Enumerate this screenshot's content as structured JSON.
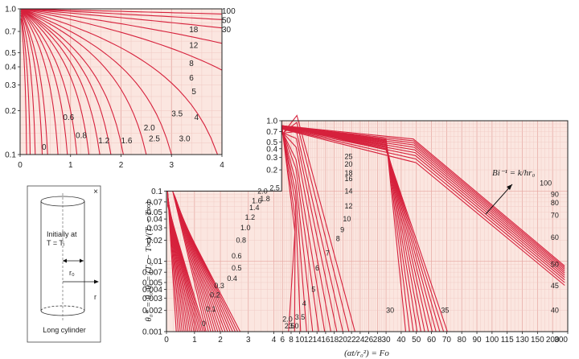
{
  "chart_data": [
    {
      "type": "line",
      "ylog": true,
      "xlim": [
        0,
        4
      ],
      "ylim": [
        0.1,
        1.0
      ],
      "x_ticks": [
        "0",
        "1",
        "2",
        "3",
        "4"
      ],
      "y_ticks": [
        {
          "v": 1.0,
          "t": "1.0"
        },
        {
          "v": 0.7,
          "t": "0.7"
        },
        {
          "v": 0.5,
          "t": "0.5"
        },
        {
          "v": 0.4,
          "t": "0.4"
        },
        {
          "v": 0.3,
          "t": "0.3"
        },
        {
          "v": 0.2,
          "t": "0.2"
        },
        {
          "v": 0.1,
          "t": "0.1"
        }
      ],
      "series": [
        {
          "name": "100",
          "slope": 0.0195
        },
        {
          "name": "50",
          "slope": 0.039
        },
        {
          "name": "30",
          "slope": 0.065
        },
        {
          "name": "18",
          "slope": 0.105
        },
        {
          "name": "12",
          "slope": 0.155
        },
        {
          "name": "8",
          "slope": 0.23
        },
        {
          "name": "6",
          "slope": 0.3
        },
        {
          "name": "5",
          "slope": 0.36
        },
        {
          "name": "4",
          "slope": 0.44
        },
        {
          "name": "3.5",
          "slope": 0.5
        },
        {
          "name": "3.0",
          "slope": 0.57
        },
        {
          "name": "2.5",
          "slope": 0.66
        },
        {
          "name": "2.0",
          "slope": 0.8
        },
        {
          "name": "1.6",
          "slope": 0.96
        },
        {
          "name": "1.2",
          "slope": 1.2
        },
        {
          "name": "0.8",
          "slope": 1.65
        },
        {
          "name": "0.6",
          "slope": 2.05
        },
        {
          "name": "0",
          "slope": 3.0
        },
        {
          "name": "",
          "slope": 4.5
        },
        {
          "name": "",
          "slope": 7.0
        }
      ],
      "labels": [
        {
          "t": "100",
          "x": 4.0,
          "y": 0.96
        },
        {
          "t": "50",
          "x": 4.0,
          "y": 0.83
        },
        {
          "t": "30",
          "x": 4.0,
          "y": 0.72
        },
        {
          "t": "18",
          "x": 3.35,
          "y": 0.72
        },
        {
          "t": "12",
          "x": 3.35,
          "y": 0.56
        },
        {
          "t": "8",
          "x": 3.35,
          "y": 0.42
        },
        {
          "t": "6",
          "x": 3.35,
          "y": 0.335
        },
        {
          "t": "5",
          "x": 3.4,
          "y": 0.27
        },
        {
          "t": "4",
          "x": 3.45,
          "y": 0.18
        },
        {
          "t": "3.5",
          "x": 3.0,
          "y": 0.19
        },
        {
          "t": "3.0",
          "x": 3.15,
          "y": 0.128
        },
        {
          "t": "2.5",
          "x": 2.55,
          "y": 0.128
        },
        {
          "t": "2.0",
          "x": 2.45,
          "y": 0.152
        },
        {
          "t": "1.6",
          "x": 2.0,
          "y": 0.124
        },
        {
          "t": "1.2",
          "x": 1.55,
          "y": 0.124
        },
        {
          "t": "0.8",
          "x": 1.1,
          "y": 0.135
        },
        {
          "t": "0.6",
          "x": 0.85,
          "y": 0.179
        },
        {
          "t": "0",
          "x": 0.43,
          "y": 0.112
        }
      ]
    },
    {
      "type": "line",
      "ylog": true,
      "ylim": [
        0.001,
        1.0
      ],
      "xlabel": "(αt/r₀²) = Fo",
      "ylabel": "θ₀* = θ₀/θᵢ = (T₀ − T∞)/(Tᵢ − T∞)",
      "x_ticks": [
        "0",
        "1",
        "2",
        "3",
        "4",
        "6",
        "8",
        "10",
        "12",
        "14",
        "16",
        "18",
        "20",
        "22",
        "24",
        "26",
        "28",
        "30",
        "40",
        "50",
        "60",
        "70",
        "80",
        "90",
        "100",
        "115",
        "130",
        "150",
        "200",
        "300"
      ],
      "y_ticks": [
        {
          "v": 1.0,
          "t": "1.0"
        },
        {
          "v": 0.7,
          "t": "0.7"
        },
        {
          "v": 0.5,
          "t": "0.5"
        },
        {
          "v": 0.4,
          "t": "0.4"
        },
        {
          "v": 0.3,
          "t": "0.3"
        },
        {
          "v": 0.2,
          "t": "0.2"
        },
        {
          "v": 0.1,
          "t": "0.1"
        },
        {
          "v": 0.07,
          "t": "0.07"
        },
        {
          "v": 0.05,
          "t": "0.05"
        },
        {
          "v": 0.04,
          "t": "0.04"
        },
        {
          "v": 0.03,
          "t": "0.03"
        },
        {
          "v": 0.02,
          "t": "0.02"
        },
        {
          "v": 0.01,
          "t": "0.01"
        },
        {
          "v": 0.007,
          "t": "0.007"
        },
        {
          "v": 0.005,
          "t": "0.005"
        },
        {
          "v": 0.004,
          "t": "0.004"
        },
        {
          "v": 0.003,
          "t": "0.003"
        },
        {
          "v": 0.002,
          "t": "0.002"
        },
        {
          "v": 0.001,
          "t": "0.001"
        }
      ],
      "labels": [
        {
          "t": "0",
          "x": 0.4,
          "y": 0.0013
        },
        {
          "t": "0.1",
          "x": 0.45,
          "y": 0.0021
        },
        {
          "t": "0.2",
          "x": 0.5,
          "y": 0.0033
        },
        {
          "t": "0.3",
          "x": 0.55,
          "y": 0.0045
        },
        {
          "t": "0.4",
          "x": 0.7,
          "y": 0.0057
        },
        {
          "t": "0.5",
          "x": 0.75,
          "y": 0.008
        },
        {
          "t": "0.6",
          "x": 0.75,
          "y": 0.012
        },
        {
          "t": "0.8",
          "x": 0.8,
          "y": 0.02
        },
        {
          "t": "1.0",
          "x": 0.85,
          "y": 0.03
        },
        {
          "t": "1.2",
          "x": 0.9,
          "y": 0.042
        },
        {
          "t": "1.4",
          "x": 0.95,
          "y": 0.058
        },
        {
          "t": "1.6",
          "x": 0.98,
          "y": 0.073
        },
        {
          "t": "1.8",
          "x": 1.08,
          "y": 0.078
        },
        {
          "t": "2.0",
          "x": 1.05,
          "y": 0.1
        },
        {
          "t": "2.5",
          "x": 1.2,
          "y": 0.11
        },
        {
          "t": "2.0",
          "x": 1.5,
          "y": 0.0015
        },
        {
          "t": "2.5",
          "x": 1.6,
          "y": 0.0012
        },
        {
          "t": "3.0",
          "x": 1.8,
          "y": 0.0012
        },
        {
          "t": "3.5",
          "x": 2.1,
          "y": 0.0016
        },
        {
          "t": "4",
          "x": 2.45,
          "y": 0.0025
        },
        {
          "t": "5",
          "x": 2.9,
          "y": 0.004
        },
        {
          "t": "6",
          "x": 3.3,
          "y": 0.008
        },
        {
          "t": "7",
          "x": 3.9,
          "y": 0.013
        },
        {
          "t": "8",
          "x": 4.5,
          "y": 0.021
        },
        {
          "t": "9",
          "x": 4.75,
          "y": 0.028
        },
        {
          "t": "10",
          "x": 4.9,
          "y": 0.04
        },
        {
          "t": "12",
          "x": 5.0,
          "y": 0.061
        },
        {
          "t": "14",
          "x": 5.0,
          "y": 0.1
        },
        {
          "t": "16",
          "x": 5.0,
          "y": 0.15
        },
        {
          "t": "18",
          "x": 5.0,
          "y": 0.18
        },
        {
          "t": "20",
          "x": 5.0,
          "y": 0.24
        },
        {
          "t": "25",
          "x": 5.0,
          "y": 0.31
        },
        {
          "t": "30",
          "x": 6.35,
          "y": 0.002
        },
        {
          "t": "35",
          "x": 6.6,
          "y": 0.002
        },
        {
          "t": "40",
          "x": 7.1,
          "y": 0.002
        },
        {
          "t": "45",
          "x": 7.1,
          "y": 0.0045
        },
        {
          "t": "50",
          "x": 7.1,
          "y": 0.009
        },
        {
          "t": "60",
          "x": 7.1,
          "y": 0.022
        },
        {
          "t": "70",
          "x": 7.1,
          "y": 0.045
        },
        {
          "t": "80",
          "x": 7.1,
          "y": 0.068
        },
        {
          "t": "90",
          "x": 7.1,
          "y": 0.09
        },
        {
          "t": "100",
          "x": 7.05,
          "y": 0.13
        }
      ],
      "annotation": "Bi⁻¹ = k/hr₀"
    }
  ],
  "figure": {
    "caption": "Long cylinder",
    "initial_label_line1": "Initially at",
    "initial_label_line2": "T = Tᵢ",
    "r0_label": "r₀",
    "r_label": "r",
    "close_glyph": "×"
  },
  "colors": {
    "curve": "#d6213c",
    "plot_bg": "#fbe6e0",
    "grid_major": "#e5a6a0",
    "grid_minor": "#f0c8c2",
    "axis": "#222222"
  }
}
